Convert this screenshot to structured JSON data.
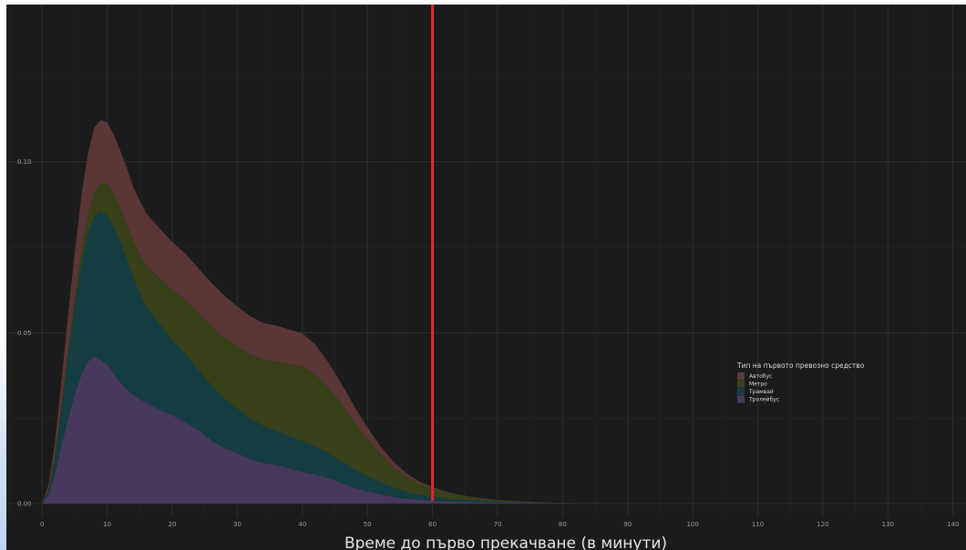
{
  "chart_data": {
    "type": "area",
    "stacked": true,
    "title": "",
    "xlabel": "Време до първо прекачване (в минути)",
    "ylabel": "",
    "xlim": [
      -5.5,
      142
    ],
    "ylim": [
      -0.004,
      0.146
    ],
    "x_ticks": [
      "0",
      "10",
      "20",
      "30",
      "40",
      "50",
      "60",
      "70",
      "80",
      "90",
      "100",
      "110",
      "120",
      "130",
      "140"
    ],
    "y_ticks": [
      "0.00",
      "0.05",
      "0.10"
    ],
    "vline": {
      "x": 60,
      "color": "#e8262f"
    },
    "grid": true,
    "legend": {
      "title": "Тип на първото превозно средство",
      "position": "right"
    },
    "x": [
      0,
      1,
      2,
      3,
      4,
      5,
      6,
      7,
      8,
      9,
      10,
      11,
      12,
      13,
      14,
      15,
      16,
      18,
      20,
      22,
      24,
      26,
      28,
      30,
      32,
      34,
      36,
      38,
      40,
      42,
      44,
      46,
      48,
      50,
      52,
      54,
      56,
      58,
      60,
      62,
      64,
      66,
      68,
      70,
      72,
      74,
      76,
      78,
      80,
      82,
      84,
      86,
      88
    ],
    "series": [
      {
        "name": "Автобус",
        "color": "#5e3838",
        "values": [
          0.0,
          0.0018,
          0.004,
          0.007,
          0.01,
          0.013,
          0.016,
          0.018,
          0.019,
          0.0185,
          0.018,
          0.0175,
          0.017,
          0.0165,
          0.016,
          0.0156,
          0.0152,
          0.0146,
          0.014,
          0.0135,
          0.0132,
          0.0128,
          0.0123,
          0.0118,
          0.0112,
          0.0108,
          0.0105,
          0.0101,
          0.0098,
          0.0088,
          0.0074,
          0.006,
          0.0046,
          0.0034,
          0.0024,
          0.0016,
          0.0011,
          0.0007,
          0.0005,
          0.0003,
          0.0002,
          0.00015,
          0.0001,
          0.0001,
          6e-05,
          5e-05,
          4e-05,
          3e-05,
          2e-05,
          1e-05,
          1e-05,
          0.0,
          0.0
        ]
      },
      {
        "name": "Метро",
        "color": "#394219",
        "values": [
          0.0,
          0.0004,
          0.0009,
          0.0016,
          0.0024,
          0.0032,
          0.0042,
          0.0055,
          0.007,
          0.0082,
          0.009,
          0.0095,
          0.0098,
          0.0102,
          0.0108,
          0.0115,
          0.0122,
          0.0135,
          0.0147,
          0.0158,
          0.0167,
          0.0173,
          0.0178,
          0.0182,
          0.0188,
          0.0194,
          0.0203,
          0.0212,
          0.0218,
          0.021,
          0.0192,
          0.0168,
          0.0138,
          0.0108,
          0.0082,
          0.006,
          0.0044,
          0.0032,
          0.0024,
          0.0018,
          0.0013,
          0.0009,
          0.0006,
          0.0004,
          0.0003,
          0.0002,
          0.00015,
          0.0001,
          6e-05,
          4e-05,
          2e-05,
          1e-05,
          0.0
        ]
      },
      {
        "name": "Трамвай",
        "color": "#133f42",
        "values": [
          0.0,
          0.001,
          0.0045,
          0.011,
          0.018,
          0.025,
          0.032,
          0.037,
          0.041,
          0.0435,
          0.044,
          0.043,
          0.041,
          0.038,
          0.034,
          0.031,
          0.028,
          0.025,
          0.022,
          0.02,
          0.0175,
          0.016,
          0.0145,
          0.013,
          0.0118,
          0.0108,
          0.01,
          0.0093,
          0.009,
          0.0082,
          0.0072,
          0.0063,
          0.0054,
          0.0045,
          0.0036,
          0.0027,
          0.002,
          0.0015,
          0.0012,
          0.0008,
          0.0006,
          0.0005,
          0.0004,
          0.0003,
          0.00025,
          0.0002,
          0.00015,
          0.0001,
          6e-05,
          4e-05,
          2e-05,
          1e-05,
          0.0
        ]
      },
      {
        "name": "Тролейбус",
        "color": "#4a3a62",
        "values": [
          0.0,
          0.0025,
          0.009,
          0.017,
          0.025,
          0.032,
          0.0375,
          0.0415,
          0.043,
          0.042,
          0.0405,
          0.038,
          0.0355,
          0.0335,
          0.0318,
          0.0305,
          0.0295,
          0.0275,
          0.0258,
          0.0238,
          0.0215,
          0.0185,
          0.0162,
          0.0147,
          0.013,
          0.0118,
          0.0113,
          0.0103,
          0.0092,
          0.0085,
          0.0075,
          0.006,
          0.0046,
          0.0035,
          0.0026,
          0.0019,
          0.0014,
          0.001,
          0.0008,
          0.0006,
          0.0005,
          0.0004,
          0.00035,
          0.0003,
          0.00025,
          0.0002,
          0.00015,
          0.0001,
          6e-05,
          4e-05,
          2e-05,
          1e-05,
          0.0
        ]
      }
    ]
  }
}
